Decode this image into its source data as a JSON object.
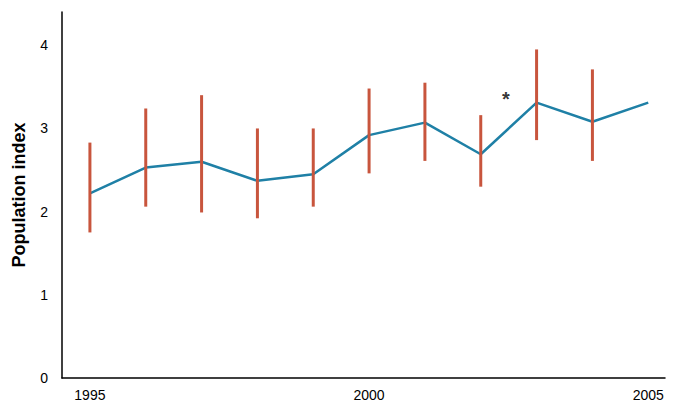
{
  "chart_data": {
    "type": "line",
    "y_label": "Population index",
    "x": [
      1995,
      1996,
      1997,
      1998,
      1999,
      2000,
      2001,
      2002,
      2003,
      2004,
      2005
    ],
    "series": [
      {
        "color": "#1f80a6",
        "values": [
          2.22,
          2.53,
          2.6,
          2.37,
          2.45,
          2.92,
          3.07,
          2.69,
          3.31,
          3.08,
          3.31
        ],
        "error_low": [
          1.75,
          2.06,
          1.99,
          1.92,
          2.06,
          2.46,
          2.61,
          2.3,
          2.86,
          2.61,
          null
        ],
        "error_high": [
          2.83,
          3.24,
          3.4,
          3.0,
          3.0,
          3.48,
          3.55,
          3.16,
          3.95,
          3.71,
          null
        ],
        "error_color": "#c8553d"
      }
    ],
    "annotations": [
      {
        "text": "*",
        "x": 2002.45,
        "y": 3.35
      }
    ],
    "xlim": [
      1994.5,
      2005.3
    ],
    "xticks": [
      1995,
      2000,
      2005
    ],
    "ylim": [
      0,
      4.4
    ],
    "yticks": [
      0,
      1,
      2,
      3,
      4
    ],
    "grid": false
  }
}
